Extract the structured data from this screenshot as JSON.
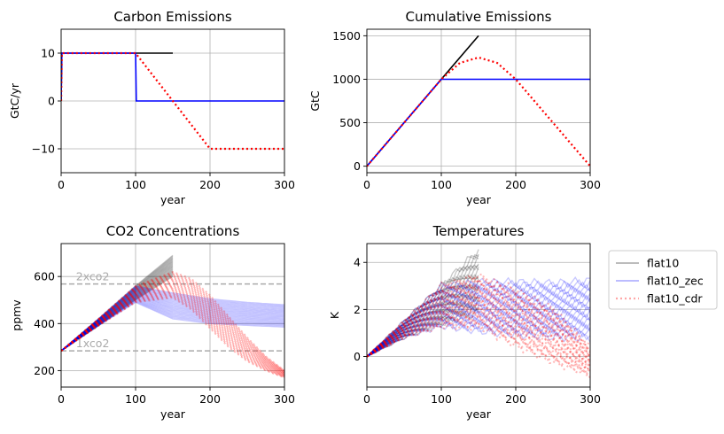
{
  "colors": {
    "flat10": "#000000",
    "flat10_zec": "#0000ff",
    "flat10_cdr": "#ff0000",
    "grid": "#b0b0b0",
    "refline": "#aaaaaa"
  },
  "legend": {
    "placement": "right of bottom-right panel",
    "entries": [
      "flat10",
      "flat10_zec",
      "flat10_cdr"
    ]
  },
  "chart_data": [
    {
      "id": "carbon",
      "type": "line",
      "title": "Carbon Emissions",
      "xlabel": "year",
      "ylabel": "GtC/yr",
      "xlim": [
        0,
        300
      ],
      "ylim": [
        -15,
        15
      ],
      "xticks": [
        0,
        100,
        200,
        300
      ],
      "yticks": [
        -10,
        0,
        10
      ],
      "ytick_labels": [
        "−10",
        "0",
        "10"
      ],
      "grid": true,
      "series": [
        {
          "name": "flat10",
          "style": "solid",
          "x": [
            0,
            1,
            150
          ],
          "y": [
            0,
            10,
            10
          ]
        },
        {
          "name": "flat10_zec",
          "style": "solid",
          "x": [
            0,
            1,
            100,
            101,
            300
          ],
          "y": [
            0,
            10,
            10,
            0,
            0
          ]
        },
        {
          "name": "flat10_cdr",
          "style": "dotted",
          "x": [
            0,
            1,
            100,
            200,
            300
          ],
          "y": [
            0,
            10,
            10,
            -10,
            -10
          ]
        }
      ]
    },
    {
      "id": "cumulative",
      "type": "line",
      "title": "Cumulative Emissions",
      "xlabel": "year",
      "ylabel": "GtC",
      "xlim": [
        0,
        300
      ],
      "ylim": [
        -75,
        1575
      ],
      "xticks": [
        0,
        100,
        200,
        300
      ],
      "yticks": [
        0,
        500,
        1000,
        1500
      ],
      "grid": true,
      "series": [
        {
          "name": "flat10",
          "style": "solid",
          "x": [
            0,
            150
          ],
          "y": [
            0,
            1500
          ]
        },
        {
          "name": "flat10_zec",
          "style": "solid",
          "x": [
            0,
            100,
            300
          ],
          "y": [
            0,
            1000,
            1000
          ]
        },
        {
          "name": "flat10_cdr",
          "style": "dotted",
          "x": [
            0,
            100,
            125,
            150,
            175,
            200,
            225,
            250,
            275,
            300
          ],
          "y": [
            0,
            1000,
            1188,
            1250,
            1188,
            1000,
            750,
            500,
            250,
            0
          ]
        }
      ]
    },
    {
      "id": "co2",
      "type": "line",
      "title": "CO2 Concentrations",
      "xlabel": "year",
      "ylabel": "ppmv",
      "xlim": [
        0,
        300
      ],
      "ylim": [
        130,
        740
      ],
      "xticks": [
        0,
        100,
        200,
        300
      ],
      "yticks": [
        200,
        400,
        600
      ],
      "grid": true,
      "reference_lines": [
        {
          "label": "2xco2",
          "y": 568
        },
        {
          "label": "1xco2",
          "y": 284
        }
      ],
      "series": [
        {
          "name": "flat10",
          "style": "solid",
          "x": [
            0,
            50,
            100,
            150
          ],
          "y_low": [
            284,
            390,
            500,
            600
          ],
          "y_high": [
            284,
            420,
            560,
            690
          ]
        },
        {
          "name": "flat10_zec",
          "style": "solid",
          "x": [
            0,
            50,
            100,
            150,
            200,
            250,
            300
          ],
          "y_low": [
            284,
            390,
            490,
            420,
            400,
            392,
            385
          ],
          "y_high": [
            284,
            420,
            560,
            530,
            505,
            490,
            480
          ]
        },
        {
          "name": "flat10_cdr",
          "style": "dotted",
          "x": [
            0,
            50,
            100,
            150,
            175,
            200,
            225,
            250,
            275,
            300
          ],
          "y_low": [
            284,
            390,
            490,
            510,
            460,
            380,
            300,
            240,
            200,
            170
          ],
          "y_high": [
            284,
            420,
            560,
            620,
            590,
            520,
            430,
            340,
            260,
            200
          ]
        }
      ]
    },
    {
      "id": "temperature",
      "type": "line",
      "title": "Temperatures",
      "xlabel": "year",
      "ylabel": "K",
      "xlim": [
        0,
        300
      ],
      "ylim": [
        -1.3,
        4.8
      ],
      "xticks": [
        0,
        100,
        200,
        300
      ],
      "yticks": [
        0,
        2,
        4
      ],
      "grid": true,
      "series": [
        {
          "name": "flat10",
          "style": "solid",
          "x": [
            0,
            50,
            100,
            150
          ],
          "y_low": [
            0,
            0.8,
            1.4,
            1.9
          ],
          "y_high": [
            0,
            1.5,
            3.0,
            4.5
          ]
        },
        {
          "name": "flat10_zec",
          "style": "solid",
          "x": [
            0,
            50,
            100,
            150,
            200,
            250,
            300
          ],
          "y_low": [
            0,
            0.8,
            1.3,
            1.1,
            0.95,
            0.85,
            0.8
          ],
          "y_high": [
            0,
            1.5,
            3.0,
            3.15,
            3.15,
            3.1,
            3.2
          ]
        },
        {
          "name": "flat10_cdr",
          "style": "dotted",
          "x": [
            0,
            50,
            100,
            150,
            200,
            250,
            300
          ],
          "y_low": [
            0,
            0.8,
            1.3,
            1.3,
            0.5,
            -0.2,
            -0.8
          ],
          "y_high": [
            0,
            1.5,
            3.0,
            3.4,
            2.8,
            2.0,
            0.4
          ]
        }
      ]
    }
  ]
}
